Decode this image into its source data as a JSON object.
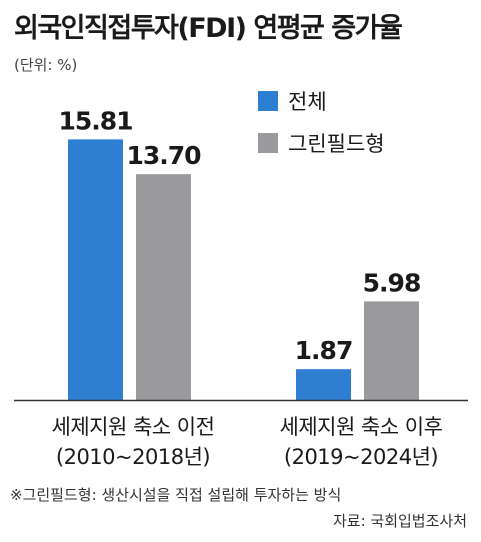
{
  "title": "외국인직접투자(FDI) 연평균 증가율",
  "unit": "(단위: %)",
  "footnote": "※그린필드형: 생산시설을 직접 설립해 투자하는 방식",
  "source": "자료: 국회입법조사처",
  "colors": {
    "blue": "#2e7ed1",
    "gray": "#9a9a9c",
    "axis": "#333333"
  },
  "chart_data": {
    "type": "bar",
    "categories": [
      {
        "line1": "세제지원 축소 이전",
        "line2": "(2010~2018년)"
      },
      {
        "line1": "세제지원 축소 이후",
        "line2": "(2019~2024년)"
      }
    ],
    "series": [
      {
        "name": "전체",
        "color": "#2e7ed1",
        "values": [
          15.81,
          1.87
        ]
      },
      {
        "name": "그린필드형",
        "color": "#9a9a9c",
        "values": [
          13.7,
          5.98
        ]
      }
    ],
    "data_labels": [
      [
        "15.81",
        "13.70"
      ],
      [
        "1.87",
        "5.98"
      ]
    ],
    "legend_position": "top-right",
    "ylim": [
      0,
      16.5
    ]
  }
}
